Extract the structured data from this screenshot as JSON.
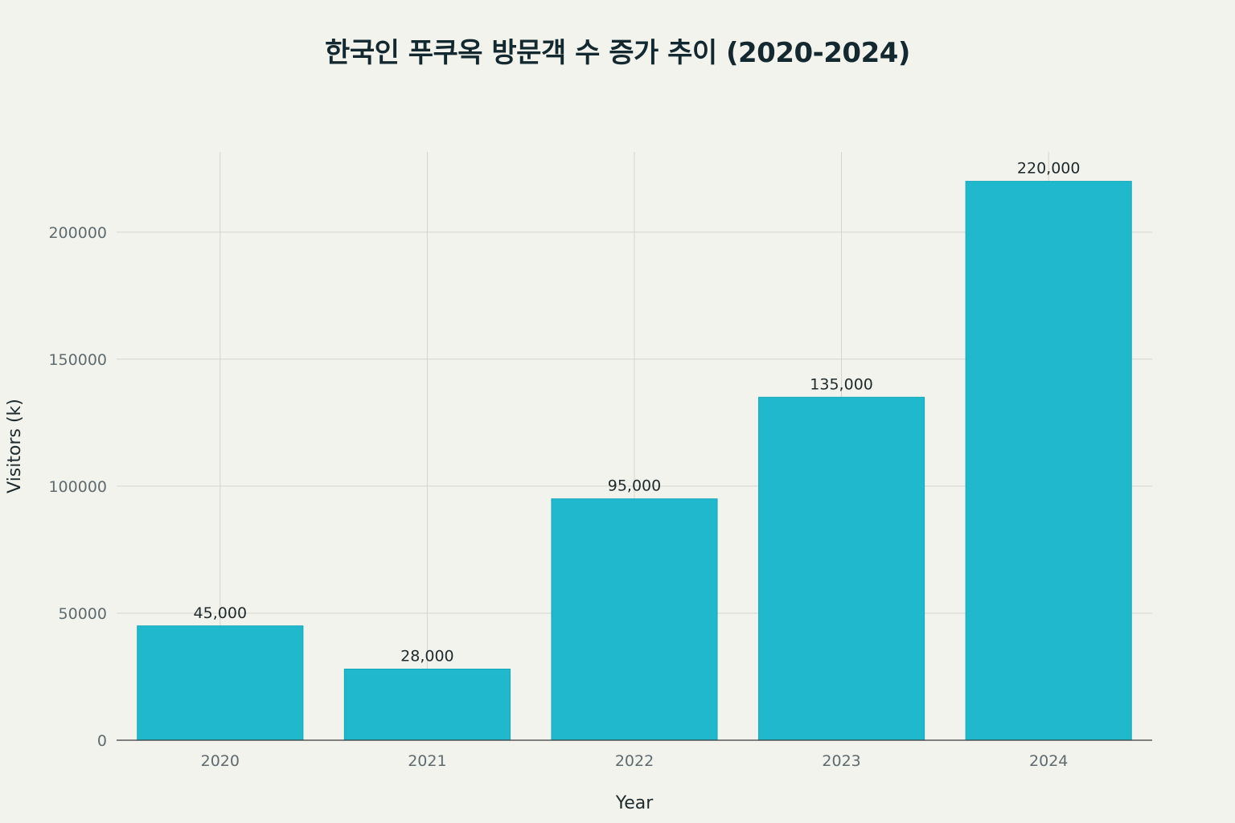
{
  "chart_data": {
    "type": "bar",
    "title": "한국인 푸쿠옥 방문객 수 증가 추이 (2020-2024)",
    "xlabel": "Year",
    "ylabel": "Visitors (k)",
    "categories": [
      "2020",
      "2021",
      "2022",
      "2023",
      "2024"
    ],
    "values": [
      45000,
      28000,
      95000,
      135000,
      220000
    ],
    "data_labels": [
      "45,000",
      "28,000",
      "95,000",
      "135,000",
      "220,000"
    ],
    "yticks": [
      0,
      50000,
      100000,
      150000,
      200000
    ],
    "ytick_labels": [
      "0",
      "50000",
      "100000",
      "150000",
      "200000"
    ],
    "ylim": [
      0,
      231579
    ],
    "grid": true,
    "bar_color": "#1fb8cd",
    "bar_edge_color": "#13a6b9"
  }
}
